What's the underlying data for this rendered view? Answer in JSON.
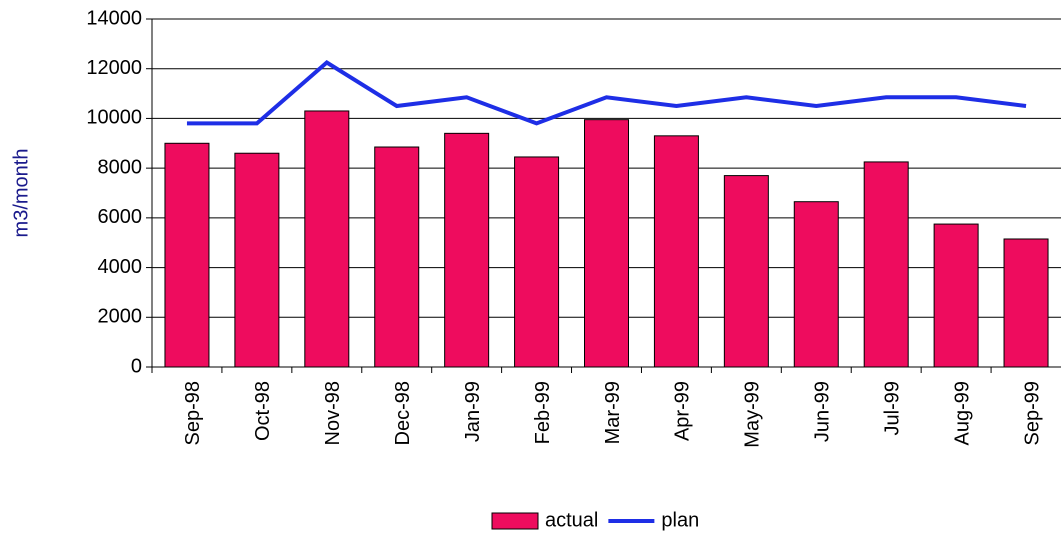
{
  "chart_data": {
    "type": "bar",
    "y_label": "m3/month",
    "categories": [
      "Sep-98",
      "Oct-98",
      "Nov-98",
      "Dec-98",
      "Jan-99",
      "Feb-99",
      "Mar-99",
      "Apr-99",
      "May-99",
      "Jun-99",
      "Jul-99",
      "Aug-99",
      "Sep-99"
    ],
    "series": [
      {
        "name": "actual",
        "type": "bar",
        "color": "#ee0c5e",
        "values": [
          9000,
          8600,
          10300,
          8850,
          9400,
          8450,
          9950,
          9300,
          7700,
          6650,
          8250,
          5750,
          5150
        ]
      },
      {
        "name": "plan",
        "type": "line",
        "color": "#1e2ee6",
        "values": [
          9800,
          9800,
          12250,
          10500,
          10850,
          9800,
          10850,
          10500,
          10850,
          10500,
          10850,
          10850,
          10500
        ]
      }
    ],
    "ylim": [
      0,
      14000
    ],
    "yticks": [
      0,
      2000,
      4000,
      6000,
      8000,
      10000,
      12000,
      14000
    ],
    "grid": true,
    "legend": "bottom"
  }
}
